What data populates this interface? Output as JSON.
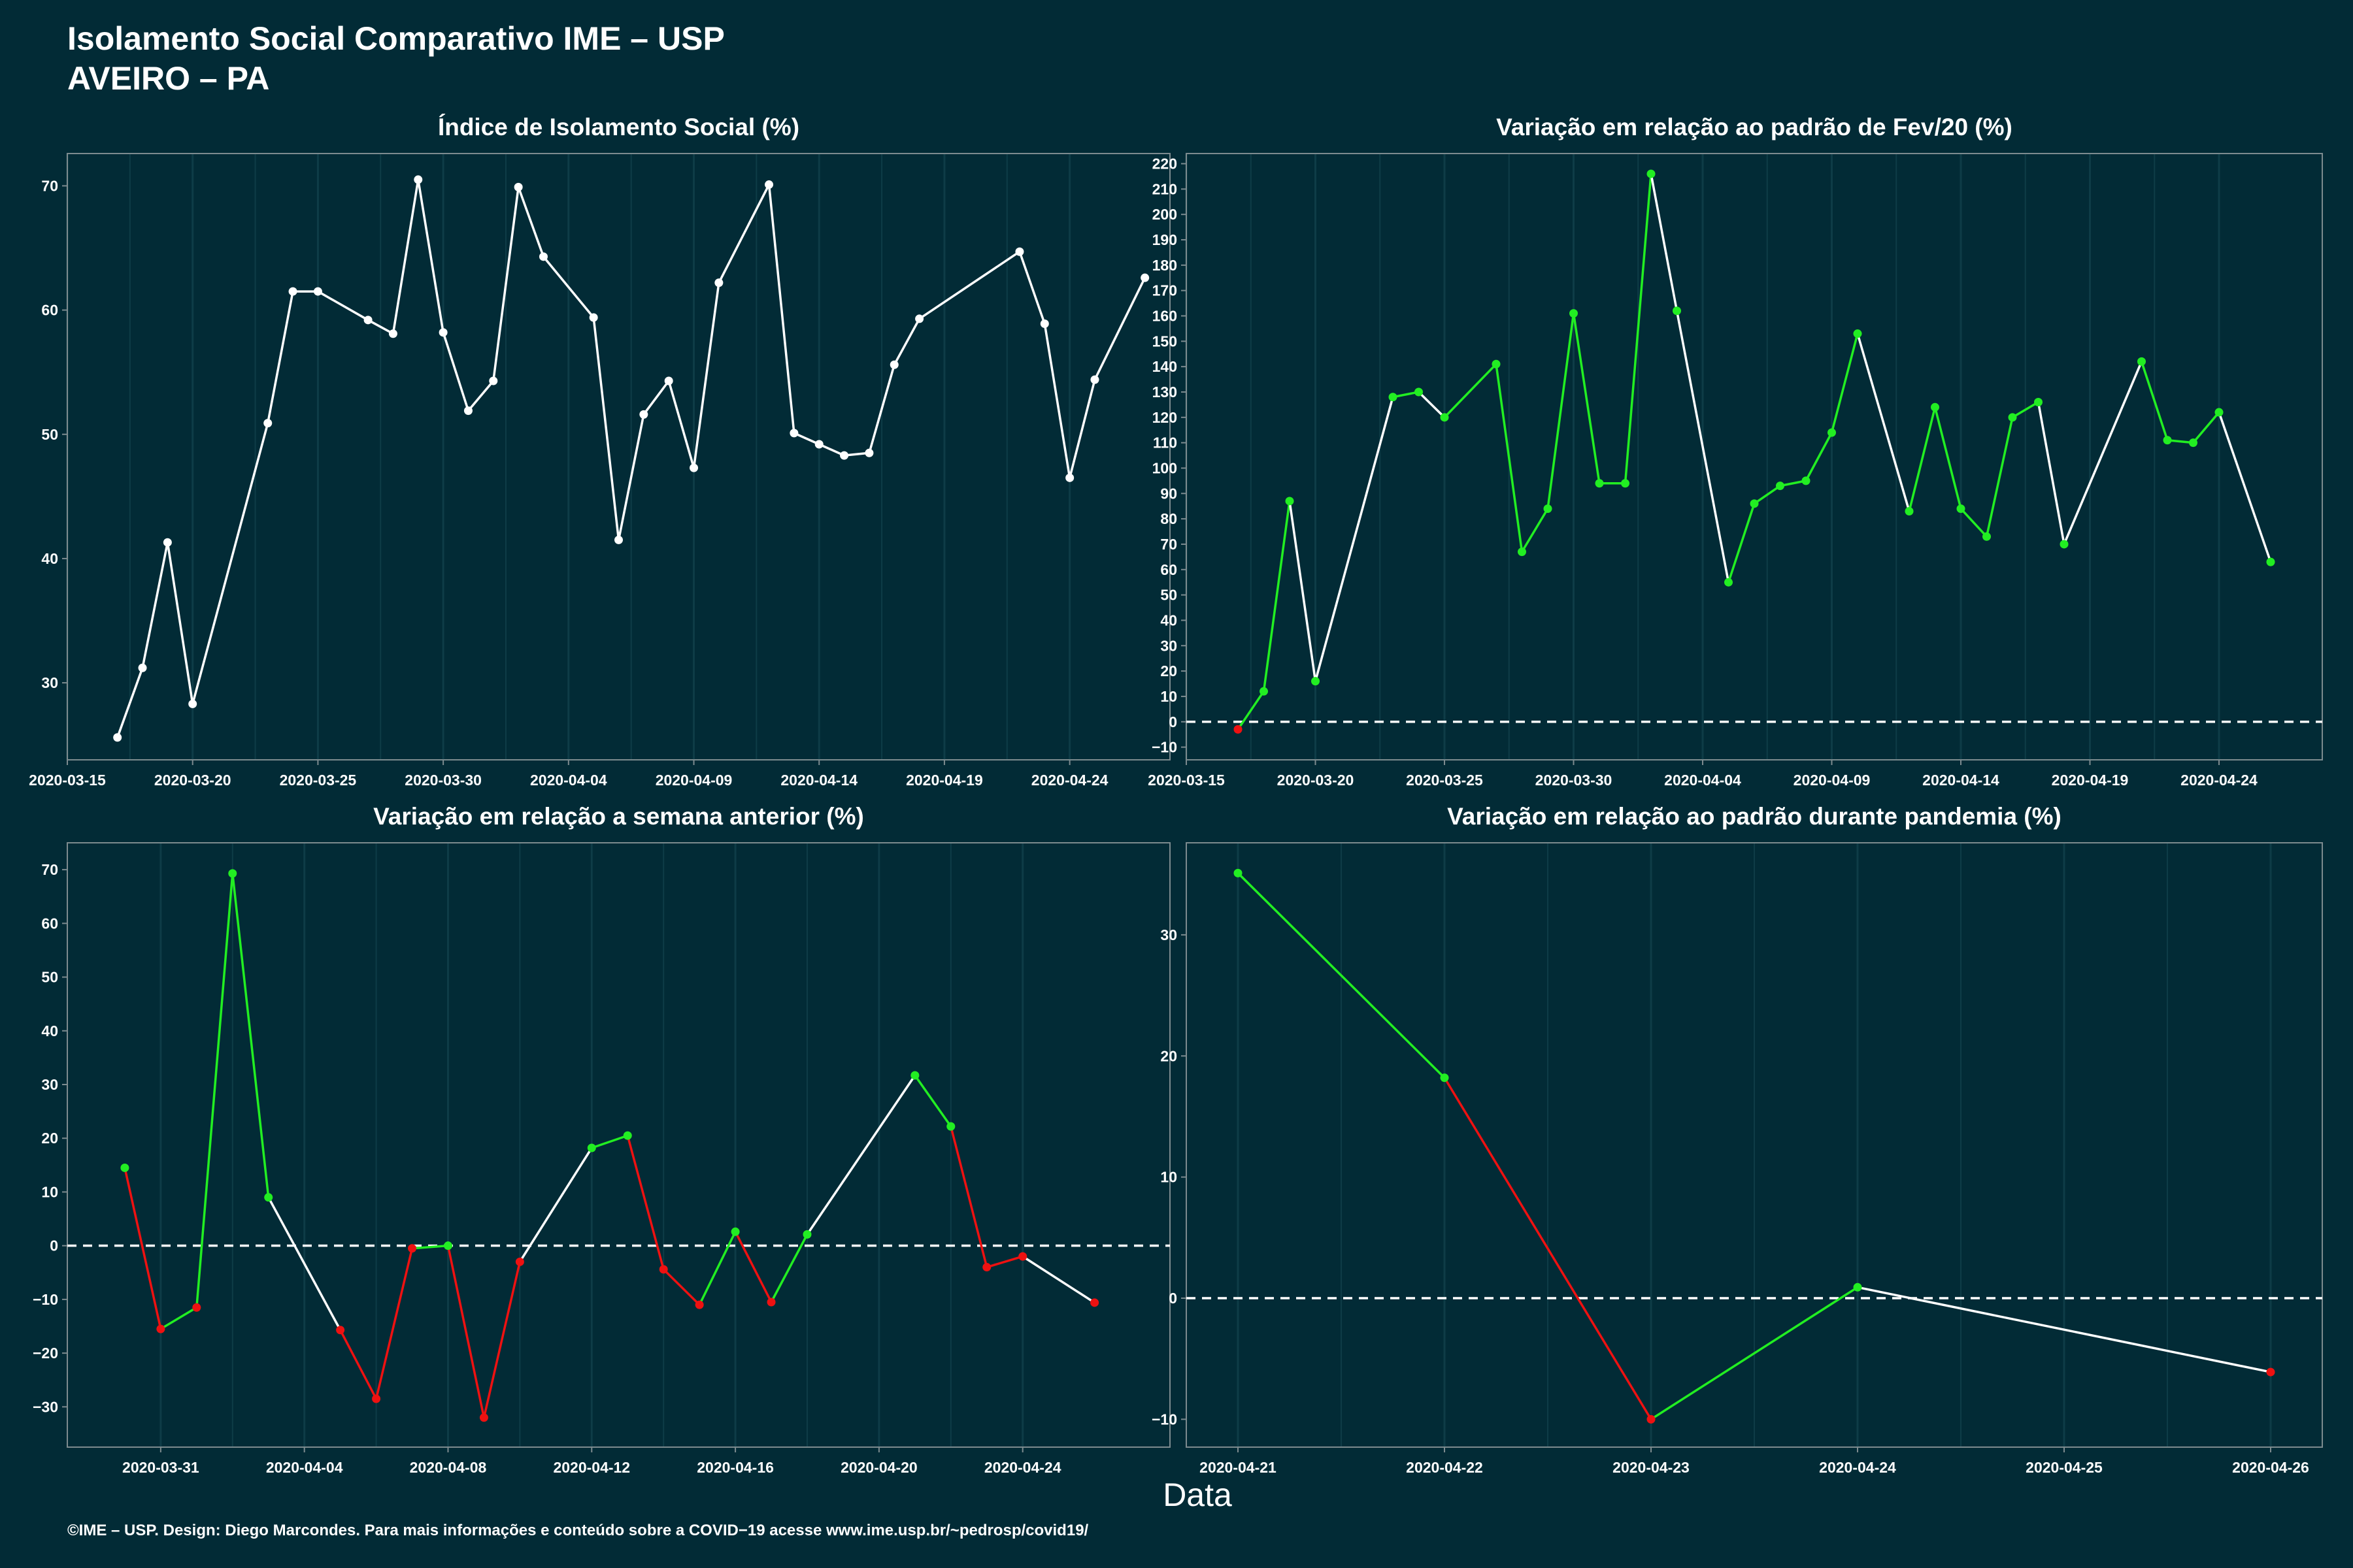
{
  "header": {
    "title": "Isolamento Social Comparativo IME – USP",
    "subtitle": "AVEIRO – PA"
  },
  "xlabel": "Data",
  "caption": "©IME – USP. Design: Diego Marcondes. Para mais informações e conteúdo sobre a COVID−19 acesse www.ime.usp.br/~pedrosp/covid19/",
  "colors": {
    "background": "#022b36",
    "line_white": "#ffffff",
    "up": "#22ee22",
    "down": "#ee1111",
    "axis": "#7d8b8f",
    "grid": "#0e3c47"
  },
  "chart_data": [
    {
      "id": "isolation",
      "type": "line",
      "title": "Índice de Isolamento Social (%)",
      "x_type": "date",
      "xlim": [
        "2020-03-15",
        "2020-04-28"
      ],
      "ylim": [
        23.8,
        72.6
      ],
      "x_ticks": [
        "2020-03-15",
        "2020-03-20",
        "2020-03-25",
        "2020-03-30",
        "2020-04-04",
        "2020-04-09",
        "2020-04-14",
        "2020-04-19",
        "2020-04-24"
      ],
      "y_ticks": [
        30,
        40,
        50,
        60,
        70
      ],
      "zero_line": false,
      "color_mode": "white",
      "x": [
        "2020-03-17",
        "2020-03-18",
        "2020-03-19",
        "2020-03-20",
        "2020-03-23",
        "2020-03-24",
        "2020-03-25",
        "2020-03-27",
        "2020-03-28",
        "2020-03-29",
        "2020-03-30",
        "2020-03-31",
        "2020-04-01",
        "2020-04-02",
        "2020-04-03",
        "2020-04-05",
        "2020-04-06",
        "2020-04-07",
        "2020-04-08",
        "2020-04-09",
        "2020-04-10",
        "2020-04-12",
        "2020-04-13",
        "2020-04-14",
        "2020-04-15",
        "2020-04-16",
        "2020-04-17",
        "2020-04-18",
        "2020-04-22",
        "2020-04-23",
        "2020-04-24",
        "2020-04-25",
        "2020-04-27"
      ],
      "y": [
        25.6,
        31.2,
        41.3,
        28.3,
        50.9,
        61.5,
        61.5,
        59.2,
        58.1,
        70.5,
        58.2,
        51.9,
        54.3,
        69.9,
        64.3,
        59.4,
        41.5,
        51.6,
        54.3,
        47.3,
        62.2,
        70.1,
        50.1,
        49.2,
        48.3,
        48.5,
        55.6,
        59.3,
        64.7,
        58.9,
        46.5,
        54.4,
        62.6
      ]
    },
    {
      "id": "feb_baseline",
      "type": "line",
      "title": "Variação em relação ao padrão de Fev/20 (%)",
      "x_type": "date",
      "xlim": [
        "2020-03-15",
        "2020-04-28"
      ],
      "ylim": [
        -15,
        224
      ],
      "x_ticks": [
        "2020-03-15",
        "2020-03-20",
        "2020-03-25",
        "2020-03-30",
        "2020-04-04",
        "2020-04-09",
        "2020-04-14",
        "2020-04-19",
        "2020-04-24"
      ],
      "y_ticks": [
        -10,
        0,
        10,
        20,
        30,
        40,
        50,
        60,
        70,
        80,
        90,
        100,
        110,
        120,
        130,
        140,
        150,
        160,
        170,
        180,
        190,
        200,
        210,
        220
      ],
      "zero_line": true,
      "color_mode": "weekday-compare",
      "x": [
        "2020-03-17",
        "2020-03-18",
        "2020-03-19",
        "2020-03-20",
        "2020-03-23",
        "2020-03-24",
        "2020-03-25",
        "2020-03-27",
        "2020-03-28",
        "2020-03-29",
        "2020-03-30",
        "2020-03-31",
        "2020-04-01",
        "2020-04-02",
        "2020-04-03",
        "2020-04-05",
        "2020-04-06",
        "2020-04-07",
        "2020-04-08",
        "2020-04-09",
        "2020-04-10",
        "2020-04-12",
        "2020-04-13",
        "2020-04-14",
        "2020-04-15",
        "2020-04-16",
        "2020-04-17",
        "2020-04-18",
        "2020-04-21",
        "2020-04-22",
        "2020-04-23",
        "2020-04-24",
        "2020-04-26"
      ],
      "y": [
        -3,
        12,
        87,
        16,
        128,
        130,
        120,
        141,
        67,
        84,
        161,
        94,
        94,
        216,
        162,
        55,
        86,
        93,
        95,
        114,
        153,
        83,
        124,
        84,
        73,
        120,
        126,
        70,
        142,
        111,
        110,
        122,
        63
      ],
      "point_colors": [
        "down",
        "up",
        "up",
        "up",
        "up",
        "up",
        "up",
        "up",
        "up",
        "up",
        "up",
        "up",
        "up",
        "up",
        "up",
        "up",
        "up",
        "up",
        "up",
        "up",
        "up",
        "up",
        "up",
        "up",
        "up",
        "up",
        "up",
        "up",
        "up",
        "up",
        "up",
        "up",
        "up"
      ],
      "segment_colors": [
        "up",
        "up",
        "white",
        "white",
        "up",
        "white",
        "up",
        "up",
        "up",
        "up",
        "up",
        "up",
        "up",
        "white",
        "white",
        "up",
        "up",
        "up",
        "up",
        "up",
        "white",
        "up",
        "up",
        "up",
        "up",
        "up",
        "white",
        "white",
        "up",
        "up",
        "up",
        "white"
      ]
    },
    {
      "id": "prev_week",
      "type": "line",
      "title": "Variação em relação a semana anterior (%)",
      "x_type": "date",
      "xlim": [
        "2020-03-28.4",
        "2020-04-28.1"
      ],
      "ylim": [
        -37.5,
        75
      ],
      "x_ticks": [
        "2020-03-31",
        "2020-04-04",
        "2020-04-08",
        "2020-04-12",
        "2020-04-16",
        "2020-04-20",
        "2020-04-24"
      ],
      "y_ticks": [
        -30,
        -20,
        -10,
        0,
        10,
        20,
        30,
        40,
        50,
        60,
        70
      ],
      "zero_line": true,
      "color_mode": "weekday-compare",
      "x": [
        "2020-03-30",
        "2020-03-31",
        "2020-04-01",
        "2020-04-02",
        "2020-04-03",
        "2020-04-05",
        "2020-04-06",
        "2020-04-07",
        "2020-04-08",
        "2020-04-09",
        "2020-04-10",
        "2020-04-12",
        "2020-04-13",
        "2020-04-14",
        "2020-04-15",
        "2020-04-16",
        "2020-04-17",
        "2020-04-18",
        "2020-04-21",
        "2020-04-22",
        "2020-04-23",
        "2020-04-24",
        "2020-04-26"
      ],
      "y": [
        14.5,
        -15.5,
        -11.5,
        69.3,
        9.0,
        -15.7,
        -28.5,
        -0.5,
        0,
        -32.0,
        -3.0,
        18.2,
        20.5,
        -4.4,
        -11.0,
        2.6,
        -10.5,
        2.1,
        31.7,
        22.2,
        -4.0,
        -2.0,
        -10.6
      ],
      "point_colors": [
        "up",
        "down",
        "down",
        "up",
        "up",
        "down",
        "down",
        "down",
        "up",
        "down",
        "down",
        "up",
        "up",
        "down",
        "down",
        "up",
        "down",
        "up",
        "up",
        "up",
        "down",
        "down",
        "down"
      ],
      "segment_colors": [
        "down",
        "up",
        "up",
        "up",
        "white",
        "down",
        "down",
        "up",
        "down",
        "down",
        "white",
        "up",
        "down",
        "down",
        "up",
        "down",
        "up",
        "white",
        "up",
        "down",
        "down",
        "white"
      ]
    },
    {
      "id": "pandemic_baseline",
      "type": "line",
      "title": "Variação em relação ao padrão durante pandemia (%)",
      "x_type": "date",
      "xlim": [
        "2020-04-20.75",
        "2020-04-26.25"
      ],
      "ylim": [
        -12.3,
        37.6
      ],
      "x_ticks": [
        "2020-04-21",
        "2020-04-22",
        "2020-04-23",
        "2020-04-24",
        "2020-04-25",
        "2020-04-26"
      ],
      "y_ticks": [
        -10,
        0,
        10,
        20,
        30
      ],
      "zero_line": true,
      "color_mode": "weekday-compare",
      "x": [
        "2020-04-21",
        "2020-04-22",
        "2020-04-23",
        "2020-04-24",
        "2020-04-26"
      ],
      "y": [
        35.1,
        18.2,
        -10.0,
        0.9,
        -6.1
      ],
      "point_colors": [
        "up",
        "up",
        "down",
        "up",
        "down"
      ],
      "segment_colors": [
        "up",
        "down",
        "up",
        "white"
      ]
    }
  ]
}
